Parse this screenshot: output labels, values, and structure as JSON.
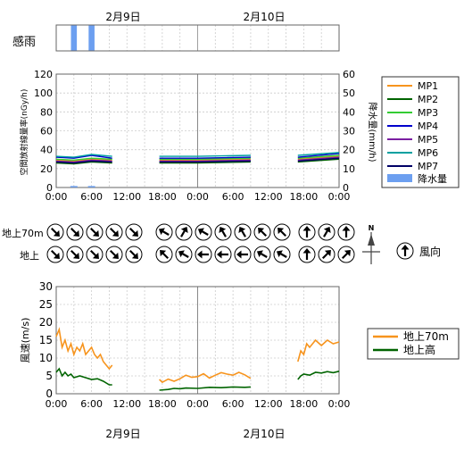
{
  "dates": [
    "2月9日",
    "2月10日"
  ],
  "rain_panel": {
    "label": "感雨"
  },
  "hours": [
    "0:00",
    "6:00",
    "12:00",
    "18:00",
    "0:00",
    "6:00",
    "12:00",
    "18:00",
    "0:00"
  ],
  "colors": {
    "MP1": "#f7941d",
    "MP2": "#006400",
    "MP3": "#33cc33",
    "MP4": "#0000cc",
    "MP5": "#7b1fa2",
    "MP6": "#00a0a0",
    "MP7": "#000066",
    "rain": "#6c9ff0",
    "wind70": "#f7941d",
    "windGround": "#006400"
  },
  "chart_data": [
    {
      "type": "line",
      "ylabel": "空間放射線量率(nGy/h)",
      "y2label": "降水量(mm/h)",
      "ylim": [
        0,
        120
      ],
      "yticks": [
        0,
        20,
        40,
        60,
        80,
        100,
        120
      ],
      "y2lim": [
        0,
        60
      ],
      "y2ticks": [
        0,
        10,
        20,
        30,
        40,
        50,
        60
      ],
      "legend_position": "right",
      "series": [
        {
          "name": "MP1",
          "segments": [
            [
              [
                0,
                29
              ],
              [
                3,
                28
              ],
              [
                6,
                30
              ],
              [
                9.5,
                29
              ]
            ],
            [
              [
                17.5,
                29
              ],
              [
                24,
                29
              ],
              [
                33,
                30
              ]
            ],
            [
              [
                41,
                30
              ],
              [
                48,
                33
              ]
            ]
          ]
        },
        {
          "name": "MP2",
          "segments": [
            [
              [
                0,
                26
              ],
              [
                3,
                25
              ],
              [
                6,
                27
              ],
              [
                9.5,
                26
              ]
            ],
            [
              [
                17.5,
                26
              ],
              [
                24,
                26
              ],
              [
                33,
                27
              ]
            ],
            [
              [
                41,
                27
              ],
              [
                48,
                30
              ]
            ]
          ]
        },
        {
          "name": "MP3",
          "segments": [
            [
              [
                0,
                30
              ],
              [
                3,
                29
              ],
              [
                6,
                31
              ],
              [
                9.5,
                30
              ]
            ],
            [
              [
                17.5,
                30
              ],
              [
                24,
                30
              ],
              [
                33,
                31
              ]
            ],
            [
              [
                41,
                31
              ],
              [
                48,
                34
              ]
            ]
          ]
        },
        {
          "name": "MP4",
          "segments": [
            [
              [
                0,
                32
              ],
              [
                3,
                31
              ],
              [
                6,
                34
              ],
              [
                9.5,
                31
              ]
            ],
            [
              [
                17.5,
                31
              ],
              [
                24,
                31
              ],
              [
                33,
                32
              ]
            ],
            [
              [
                41,
                32
              ],
              [
                48,
                36
              ]
            ]
          ]
        },
        {
          "name": "MP5",
          "segments": [
            [
              [
                0,
                28
              ],
              [
                3,
                27
              ],
              [
                6,
                29
              ],
              [
                9.5,
                28
              ]
            ],
            [
              [
                17.5,
                28
              ],
              [
                24,
                28
              ],
              [
                33,
                29
              ]
            ],
            [
              [
                41,
                29
              ],
              [
                48,
                32
              ]
            ]
          ]
        },
        {
          "name": "MP6",
          "segments": [
            [
              [
                0,
                33
              ],
              [
                3,
                32
              ],
              [
                6,
                35
              ],
              [
                9.5,
                33
              ]
            ],
            [
              [
                17.5,
                33
              ],
              [
                24,
                33
              ],
              [
                33,
                34
              ]
            ],
            [
              [
                41,
                34
              ],
              [
                48,
                37
              ]
            ]
          ]
        },
        {
          "name": "MP7",
          "segments": [
            [
              [
                0,
                27
              ],
              [
                3,
                26
              ],
              [
                6,
                28
              ],
              [
                9.5,
                27
              ]
            ],
            [
              [
                17.5,
                27
              ],
              [
                24,
                27
              ],
              [
                33,
                28
              ]
            ],
            [
              [
                41,
                28
              ],
              [
                48,
                31
              ]
            ]
          ]
        }
      ],
      "rain_series": {
        "name": "降水量",
        "x": [
          3,
          6
        ],
        "values": [
          0.3,
          0.3
        ]
      },
      "sensed_rain_hours": [
        [
          2.5,
          3.5
        ],
        [
          5.5,
          6.5
        ]
      ]
    },
    {
      "type": "wind_direction",
      "rows": [
        {
          "label": "地上70m",
          "directions_deg": [
            135,
            135,
            135,
            135,
            135,
            300,
            30,
            300,
            330,
            330,
            315,
            315,
            0,
            30,
            0
          ]
        },
        {
          "label": "地上",
          "directions_deg": [
            135,
            135,
            135,
            135,
            135,
            315,
            300,
            270,
            270,
            270,
            300,
            300,
            0,
            45,
            45
          ]
        }
      ],
      "times": [
        0,
        3,
        6,
        9,
        12,
        18,
        21,
        24,
        27,
        30,
        33,
        36,
        42,
        45,
        48
      ],
      "legend_label": "風向"
    },
    {
      "type": "line",
      "ylabel": "風速(m/s)",
      "ylim": [
        0,
        30
      ],
      "yticks": [
        0,
        5,
        10,
        15,
        20,
        25,
        30
      ],
      "legend_position": "right",
      "series": [
        {
          "name": "地上70m",
          "segments": [
            [
              [
                0,
                16
              ],
              [
                0.5,
                18
              ],
              [
                1,
                13
              ],
              [
                1.5,
                15
              ],
              [
                2,
                12
              ],
              [
                2.5,
                14
              ],
              [
                3,
                11
              ],
              [
                3.5,
                13
              ],
              [
                4,
                12
              ],
              [
                4.5,
                14
              ],
              [
                5,
                11
              ],
              [
                5.5,
                12
              ],
              [
                6,
                13
              ],
              [
                6.5,
                11
              ],
              [
                7,
                10
              ],
              [
                7.5,
                11
              ],
              [
                8,
                9
              ],
              [
                8.5,
                8
              ],
              [
                9,
                7
              ],
              [
                9.5,
                8
              ]
            ],
            [
              [
                17.5,
                4
              ],
              [
                18,
                3.2
              ],
              [
                19,
                4.1
              ],
              [
                20,
                3.5
              ],
              [
                21,
                4.2
              ],
              [
                22,
                5.2
              ],
              [
                23,
                4.6
              ],
              [
                24,
                4.8
              ],
              [
                25,
                5.6
              ],
              [
                26,
                4.4
              ],
              [
                27,
                5.2
              ],
              [
                28,
                5.9
              ],
              [
                29,
                5.5
              ],
              [
                30,
                5.2
              ],
              [
                31,
                6
              ],
              [
                32,
                5.3
              ],
              [
                33,
                4.3
              ]
            ],
            [
              [
                41,
                9
              ],
              [
                41.5,
                12
              ],
              [
                42,
                11
              ],
              [
                42.5,
                14
              ],
              [
                43,
                13
              ],
              [
                44,
                15
              ],
              [
                45,
                13.5
              ],
              [
                46,
                15
              ],
              [
                47,
                14
              ],
              [
                48,
                14.5
              ]
            ]
          ]
        },
        {
          "name": "地上高",
          "segments": [
            [
              [
                0,
                6
              ],
              [
                0.5,
                7
              ],
              [
                1,
                5
              ],
              [
                1.5,
                6
              ],
              [
                2,
                5
              ],
              [
                2.5,
                5.5
              ],
              [
                3,
                4.5
              ],
              [
                4,
                5
              ],
              [
                5,
                4.5
              ],
              [
                6,
                4
              ],
              [
                7,
                4.2
              ],
              [
                8,
                3.5
              ],
              [
                9,
                2.5
              ],
              [
                9.5,
                2.5
              ]
            ],
            [
              [
                17.5,
                1
              ],
              [
                19,
                1.2
              ],
              [
                20,
                1.5
              ],
              [
                21,
                1.4
              ],
              [
                22,
                1.6
              ],
              [
                24,
                1.5
              ],
              [
                26,
                1.8
              ],
              [
                28,
                1.7
              ],
              [
                30,
                1.9
              ],
              [
                32,
                1.8
              ],
              [
                33,
                1.9
              ]
            ],
            [
              [
                41,
                4
              ],
              [
                41.5,
                5
              ],
              [
                42,
                5.5
              ],
              [
                43,
                5.2
              ],
              [
                44,
                6
              ],
              [
                45,
                5.8
              ],
              [
                46,
                6.2
              ],
              [
                47,
                5.9
              ],
              [
                48,
                6.3
              ]
            ]
          ]
        }
      ]
    }
  ]
}
